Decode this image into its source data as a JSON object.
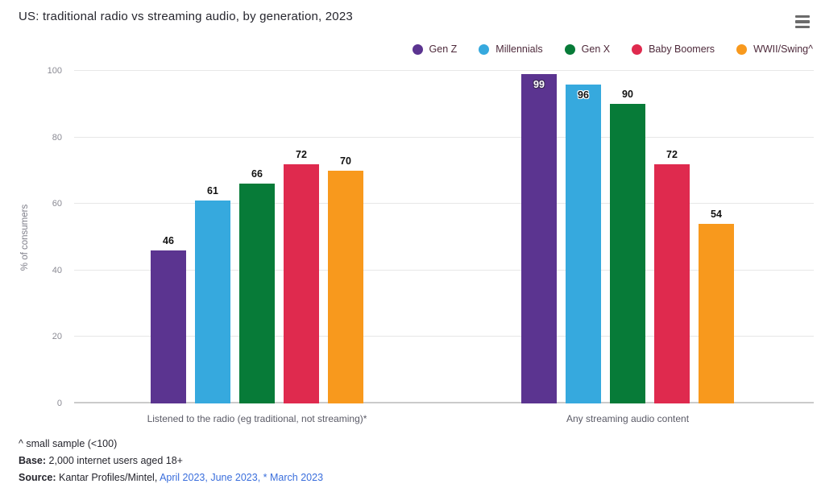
{
  "header": {
    "menu_icon": "hamburger-menu-icon"
  },
  "chart_data": {
    "type": "bar",
    "title": "US: traditional radio vs streaming audio, by generation, 2023",
    "xlabel": "",
    "ylabel": "% of consumers",
    "ylim": [
      0,
      100
    ],
    "yticks": [
      0,
      20,
      40,
      60,
      80,
      100
    ],
    "grid": true,
    "legend_position": "top-right",
    "categories": [
      "Listened to the radio (eg traditional, not streaming)*",
      "Any streaming audio content"
    ],
    "series": [
      {
        "name": "Gen Z",
        "color": "#5b3490",
        "values": [
          46,
          99
        ]
      },
      {
        "name": "Millennials",
        "color": "#36a9de",
        "values": [
          61,
          96
        ]
      },
      {
        "name": "Gen X",
        "color": "#077b38",
        "values": [
          66,
          90
        ]
      },
      {
        "name": "Baby Boomers",
        "color": "#df2a4e",
        "values": [
          72,
          72
        ]
      },
      {
        "name": "WWII/Swing^",
        "color": "#f8991d",
        "values": [
          70,
          54
        ]
      }
    ],
    "label_styles": [
      [
        "above",
        "above",
        "above",
        "above",
        "above"
      ],
      [
        "inside-light",
        "inside-halo",
        "above",
        "above",
        "above"
      ]
    ]
  },
  "footer": {
    "note": "^ small sample (<100)",
    "base_label": "Base:",
    "base_text": " 2,000 internet users aged 18+",
    "source_label": "Source:",
    "source_segments": [
      {
        "text": " Kantar Profiles/Mintel, ",
        "link": false,
        "interactable": false
      },
      {
        "text": "April 2023",
        "link": true,
        "interactable": true
      },
      {
        "text": ", ",
        "link": true,
        "interactable": false
      },
      {
        "text": "June 2023",
        "link": true,
        "interactable": true
      },
      {
        "text": ", ",
        "link": true,
        "interactable": false
      },
      {
        "text": "* March 2023",
        "link": true,
        "interactable": true
      }
    ],
    "link_color": "#3a6edc",
    "text_color": "#26262e"
  }
}
